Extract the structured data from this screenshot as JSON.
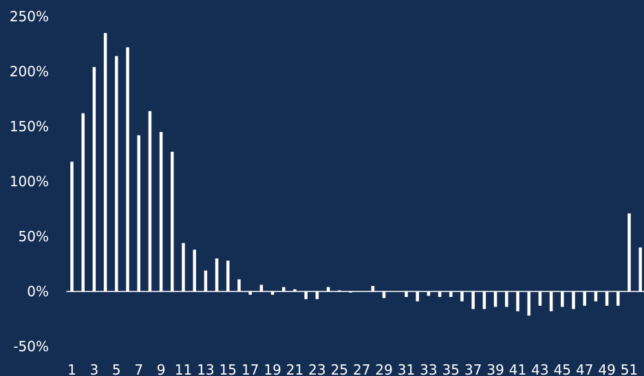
{
  "colors": {
    "background": "#142d52",
    "bar": "#ffffff",
    "text": "#ffffff"
  },
  "chart_data": {
    "type": "bar",
    "title": "",
    "xlabel": "",
    "ylabel": "",
    "ylim": [
      -50,
      250
    ],
    "y_ticks": [
      "250%",
      "200%",
      "150%",
      "100%",
      "50%",
      "0%",
      "-50%"
    ],
    "categories": [
      1,
      2,
      3,
      4,
      5,
      6,
      7,
      8,
      9,
      10,
      11,
      12,
      13,
      14,
      15,
      16,
      17,
      18,
      19,
      20,
      21,
      22,
      23,
      24,
      25,
      26,
      27,
      28,
      29,
      30,
      31,
      32,
      33,
      34,
      35,
      36,
      37,
      38,
      39,
      40,
      41,
      42,
      43,
      44,
      45,
      46,
      47,
      48,
      49,
      50,
      51,
      52
    ],
    "x_tick_labels": [
      "1",
      "3",
      "5",
      "7",
      "9",
      "11",
      "13",
      "15",
      "17",
      "19",
      "21",
      "23",
      "25",
      "27",
      "29",
      "31",
      "33",
      "35",
      "37",
      "39",
      "41",
      "43",
      "45",
      "47",
      "49",
      "51"
    ],
    "series": [
      {
        "values": [
          118,
          162,
          204,
          235,
          214,
          222,
          142,
          164,
          145,
          127,
          44,
          38,
          19,
          30,
          28,
          11,
          -3,
          6,
          -3,
          4,
          2,
          -7,
          -7,
          4,
          1,
          -1,
          0,
          5,
          -6,
          0,
          -5,
          -9,
          -4,
          -5,
          -5,
          -9,
          -16,
          -16,
          -14,
          -14,
          -18,
          -22,
          -13,
          -18,
          -14,
          -16,
          -13,
          -9,
          -13,
          -13,
          71,
          40
        ]
      }
    ]
  }
}
